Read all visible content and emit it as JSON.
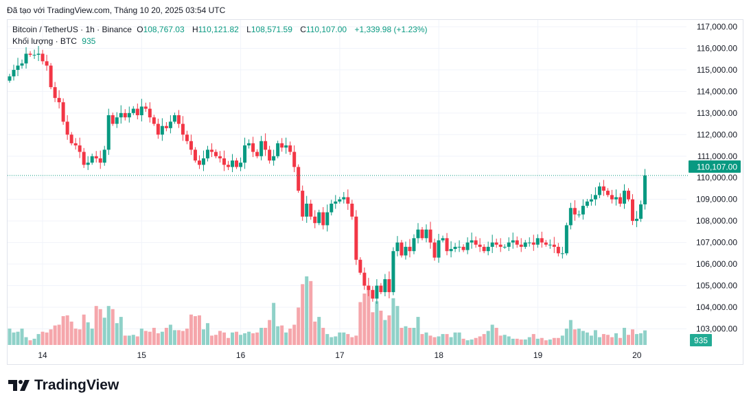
{
  "caption": "Đã tạo với TradingView.com, Tháng 10 20, 2025 03:54 UTC",
  "legend": {
    "symbol": "Bitcoin / TetherUS · 1h · Binance",
    "o_label": "O",
    "o": "108,767.03",
    "h_label": "H",
    "h": "110,121.82",
    "l_label": "L",
    "l": "108,571.59",
    "c_label": "C",
    "c": "110,107.00",
    "change": "+1,339.98 (+1.23%)",
    "volume_label": "Khối lượng · BTC",
    "volume": "935"
  },
  "logo": "TradingView",
  "colors": {
    "up": "#089981",
    "down": "#f23645",
    "up_volume": "#8fd1c8",
    "down_volume": "#f5a6ab",
    "grid": "#f0f3fa"
  },
  "chart_data": {
    "type": "candlestick",
    "interval": "1h",
    "first_open": 114500,
    "y_ticks": [
      "117,000.00",
      "116,000.00",
      "115,000.00",
      "114,000.00",
      "113,000.00",
      "112,000.00",
      "111,000.00",
      "110,000.00",
      "109,000.00",
      "108,000.00",
      "107,000.00",
      "106,000.00",
      "105,000.00",
      "104,000.00",
      "103,000.00"
    ],
    "y_tick_values": [
      117000,
      116000,
      115000,
      114000,
      113000,
      112000,
      111000,
      110000,
      109000,
      108000,
      107000,
      106000,
      105000,
      104000,
      103000
    ],
    "x_ticks": [
      "14",
      "15",
      "16",
      "17",
      "18",
      "19",
      "20"
    ],
    "last_price_label": "110,107.00",
    "last_volume_label": "935",
    "close": [
      114700,
      115000,
      115200,
      115300,
      115750,
      115700,
      115700,
      115750,
      115400,
      115200,
      114200,
      113700,
      113500,
      112600,
      112000,
      111600,
      111500,
      111200,
      110600,
      110700,
      111000,
      110900,
      110700,
      111300,
      112900,
      112500,
      112800,
      113000,
      112800,
      113000,
      113200,
      112900,
      113300,
      113200,
      112800,
      112500,
      112000,
      112400,
      112300,
      112600,
      112900,
      112500,
      112000,
      111700,
      111300,
      110800,
      110600,
      110900,
      111300,
      111200,
      111000,
      110900,
      110600,
      110500,
      110800,
      110500,
      110700,
      111500,
      111600,
      111200,
      111000,
      111700,
      111300,
      110800,
      111000,
      111600,
      111400,
      111500,
      111200,
      110500,
      109400,
      108200,
      108800,
      108200,
      107900,
      108400,
      107800,
      108400,
      108800,
      108900,
      109000,
      109100,
      108800,
      108200,
      106200,
      105600,
      105000,
      104800,
      104400,
      105000,
      104700,
      105300,
      104700,
      106600,
      107000,
      106400,
      106800,
      106600,
      107200,
      107600,
      107200,
      107600,
      107000,
      106300,
      107100,
      107200,
      106600,
      106700,
      106800,
      106800,
      106650,
      107000,
      107100,
      106900,
      106800,
      106600,
      106800,
      107000,
      106900,
      106800,
      106800,
      107000,
      107100,
      106900,
      106800,
      107000,
      107000,
      106900,
      107200,
      107000,
      106900,
      106900,
      106800,
      106500,
      106500,
      107800,
      108600,
      108300,
      108300,
      108700,
      108900,
      109000,
      109200,
      109600,
      109400,
      109200,
      109000,
      109100,
      108800,
      109400,
      109000,
      108000,
      108100,
      108767,
      110107
    ],
    "volume": [
      1050,
      800,
      850,
      1050,
      500,
      300,
      400,
      700,
      850,
      800,
      1000,
      1250,
      1300,
      1850,
      1900,
      1500,
      1050,
      1000,
      1950,
      1450,
      1050,
      2500,
      2300,
      1750,
      2500,
      2300,
      1400,
      1800,
      600,
      600,
      650,
      550,
      1050,
      900,
      850,
      1100,
      750,
      850,
      1100,
      1300,
      950,
      950,
      900,
      1050,
      1950,
      1850,
      1900,
      1000,
      1400,
      600,
      650,
      900,
      800,
      450,
      800,
      850,
      650,
      750,
      850,
      750,
      800,
      1100,
      1100,
      1600,
      2700,
      1200,
      1250,
      800,
      1050,
      1300,
      2400,
      3900,
      4400,
      4100,
      1500,
      1800,
      1100,
      700,
      500,
      550,
      800,
      800,
      700,
      500,
      600,
      2750,
      3300,
      3800,
      2100,
      2800,
      2200,
      1600,
      1900,
      3000,
      2500,
      1100,
      1200,
      1100,
      1100,
      1800,
      700,
      800,
      600,
      500,
      550,
      700,
      700,
      500,
      800,
      800,
      400,
      300,
      350,
      450,
      550,
      700,
      900,
      1300,
      1100,
      600,
      650,
      550,
      400,
      400,
      350,
      350,
      500,
      700,
      400,
      450,
      300,
      350,
      450,
      450,
      600,
      1050,
      1600,
      1000,
      1050,
      900,
      800,
      600,
      950,
      500,
      700,
      650,
      500,
      750,
      450,
      1100,
      650,
      1000,
      700,
      750,
      935
    ]
  }
}
